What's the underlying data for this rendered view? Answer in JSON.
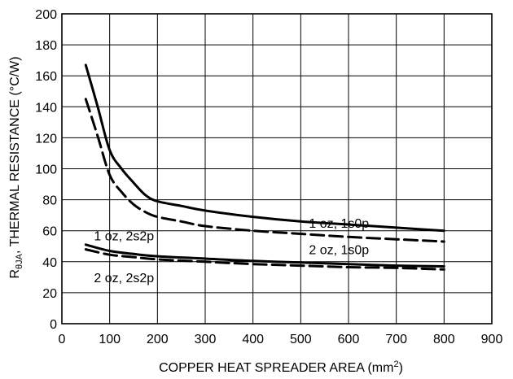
{
  "chart_data": {
    "type": "line",
    "title": "",
    "xlabel": "COPPER HEAT SPREADER AREA (mm",
    "xlabel_sup": "2",
    "xlabel_end": ")",
    "ylabel_main": "R",
    "ylabel_sub": "θJA",
    "ylabel_rest": ", THERMAL RESISTANCE (°C/W)",
    "xlim": [
      0,
      900
    ],
    "ylim": [
      0,
      200
    ],
    "xticks": [
      0,
      100,
      200,
      300,
      400,
      500,
      600,
      700,
      800,
      900
    ],
    "yticks": [
      0,
      20,
      40,
      60,
      80,
      100,
      120,
      140,
      160,
      180,
      200
    ],
    "grid": true,
    "series": [
      {
        "name": "1 oz, 1s0p",
        "style": "solid",
        "points": [
          [
            50,
            167
          ],
          [
            75,
            140
          ],
          [
            100,
            112
          ],
          [
            125,
            100
          ],
          [
            150,
            91
          ],
          [
            175,
            83
          ],
          [
            200,
            79
          ],
          [
            250,
            76
          ],
          [
            300,
            73
          ],
          [
            400,
            69
          ],
          [
            500,
            66
          ],
          [
            600,
            64
          ],
          [
            700,
            62
          ],
          [
            800,
            60
          ]
        ]
      },
      {
        "name": "2 oz, 1s0p",
        "style": "dashed",
        "points": [
          [
            50,
            145
          ],
          [
            75,
            121
          ],
          [
            100,
            96
          ],
          [
            125,
            85
          ],
          [
            150,
            77
          ],
          [
            175,
            72
          ],
          [
            200,
            69
          ],
          [
            250,
            66
          ],
          [
            300,
            63
          ],
          [
            400,
            60
          ],
          [
            500,
            58
          ],
          [
            600,
            56
          ],
          [
            700,
            54.5
          ],
          [
            800,
            53
          ]
        ]
      },
      {
        "name": "1 oz, 2s2p",
        "style": "solid",
        "points": [
          [
            50,
            51
          ],
          [
            100,
            47
          ],
          [
            150,
            45
          ],
          [
            200,
            43.5
          ],
          [
            300,
            42
          ],
          [
            400,
            40.5
          ],
          [
            500,
            39.5
          ],
          [
            600,
            38.5
          ],
          [
            700,
            37.5
          ],
          [
            800,
            37
          ]
        ]
      },
      {
        "name": "2 oz, 2s2p",
        "style": "dashed",
        "points": [
          [
            50,
            48
          ],
          [
            100,
            44.5
          ],
          [
            150,
            43
          ],
          [
            200,
            41.5
          ],
          [
            300,
            40
          ],
          [
            400,
            38.5
          ],
          [
            500,
            37.5
          ],
          [
            600,
            36.5
          ],
          [
            700,
            36
          ],
          [
            800,
            35
          ]
        ]
      }
    ],
    "annotations": [
      {
        "text": "1 oz, 1s0p",
        "x": 580,
        "y": 65
      },
      {
        "text": "2 oz, 1s0p",
        "x": 580,
        "y": 48
      },
      {
        "text": "1 oz, 2s2p",
        "x": 130,
        "y": 57
      },
      {
        "text": "2 oz, 2s2p",
        "x": 130,
        "y": 30
      }
    ]
  }
}
